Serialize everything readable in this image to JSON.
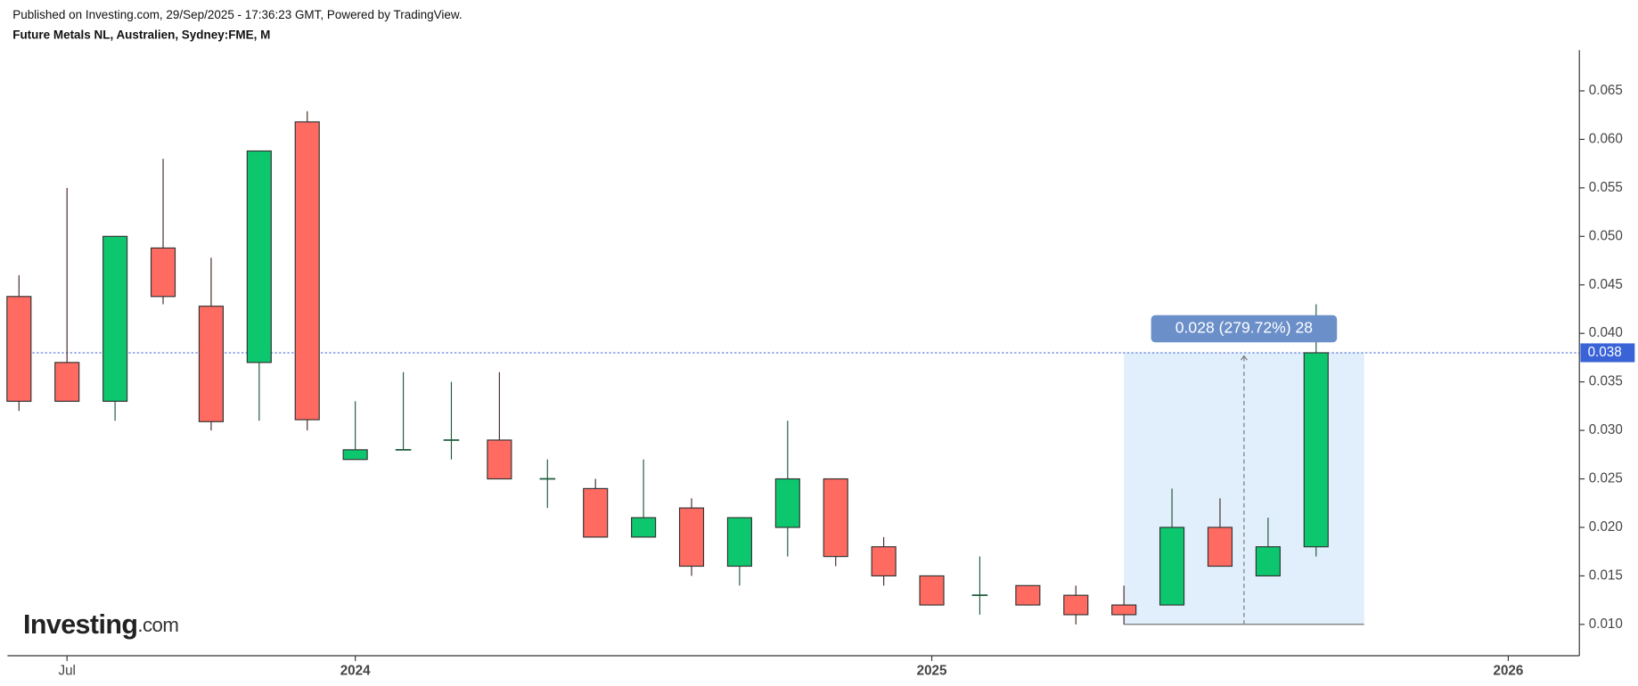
{
  "chart_data": {
    "type": "candlestick",
    "header": "Published on Investing.com, 29/Sep/2025 - 17:36:23 GMT, Powered by TradingView.",
    "title": "Future Metals NL, Australien, Sydney:FME, M",
    "logo": "Investing",
    "logo_suffix": ".com",
    "x": [
      0,
      1,
      2,
      3,
      4,
      5,
      6,
      7,
      8,
      9,
      10,
      11,
      12,
      13,
      14,
      15,
      16,
      17,
      18,
      19,
      20,
      21,
      22,
      23,
      24,
      25,
      26,
      27
    ],
    "open": [
      0.0438,
      0.037,
      0.033,
      0.0488,
      0.0428,
      0.037,
      0.0618,
      0.027,
      0.028,
      0.029,
      0.029,
      0.025,
      0.024,
      0.019,
      0.022,
      0.016,
      0.02,
      0.025,
      0.018,
      0.015,
      0.013,
      0.014,
      0.013,
      0.012,
      0.012,
      0.02,
      0.015,
      0.018
    ],
    "high": [
      0.046,
      0.055,
      0.05,
      0.058,
      0.0478,
      0.0588,
      0.0629,
      0.033,
      0.036,
      0.035,
      0.036,
      0.027,
      0.025,
      0.027,
      0.023,
      0.021,
      0.031,
      0.025,
      0.019,
      0.015,
      0.017,
      0.014,
      0.014,
      0.014,
      0.024,
      0.023,
      0.021,
      0.043
    ],
    "low": [
      0.032,
      0.033,
      0.031,
      0.043,
      0.03,
      0.031,
      0.03,
      0.027,
      0.028,
      0.027,
      0.025,
      0.022,
      0.019,
      0.019,
      0.015,
      0.014,
      0.017,
      0.016,
      0.014,
      0.012,
      0.011,
      0.012,
      0.01,
      0.01,
      0.012,
      0.016,
      0.015,
      0.017
    ],
    "close": [
      0.033,
      0.033,
      0.05,
      0.0438,
      0.0309,
      0.0588,
      0.0311,
      0.028,
      0.028,
      0.029,
      0.025,
      0.025,
      0.019,
      0.021,
      0.016,
      0.021,
      0.025,
      0.017,
      0.015,
      0.012,
      0.013,
      0.012,
      0.011,
      0.011,
      0.02,
      0.016,
      0.018,
      0.038
    ],
    "up_color": "#0cc76e",
    "down_color": "#ff6b61",
    "xlim": [
      -0.24,
      32.48
    ],
    "xticks": [
      {
        "value": 1,
        "label": "Jul"
      },
      {
        "value": 7,
        "label": "2024"
      },
      {
        "value": 19,
        "label": "2025"
      },
      {
        "value": 31,
        "label": "2026"
      }
    ],
    "ylim": [
      0.00677,
      0.0692
    ],
    "yticks": [
      {
        "value": 0.01,
        "label": "0.010"
      },
      {
        "value": 0.015,
        "label": "0.015"
      },
      {
        "value": 0.02,
        "label": "0.020"
      },
      {
        "value": 0.025,
        "label": "0.025"
      },
      {
        "value": 0.03,
        "label": "0.030"
      },
      {
        "value": 0.035,
        "label": "0.035"
      },
      {
        "value": 0.04,
        "label": "0.040"
      },
      {
        "value": 0.045,
        "label": "0.045"
      },
      {
        "value": 0.05,
        "label": "0.050"
      },
      {
        "value": 0.055,
        "label": "0.055"
      },
      {
        "value": 0.06,
        "label": "0.060"
      },
      {
        "value": 0.065,
        "label": "0.065"
      }
    ],
    "last_price": {
      "value": 0.038,
      "label": "0.038"
    },
    "measure": {
      "label": "0.028 (279.72%) 28",
      "x_from": 23,
      "x_to": 28,
      "from": 0.01,
      "to": 0.038
    }
  }
}
